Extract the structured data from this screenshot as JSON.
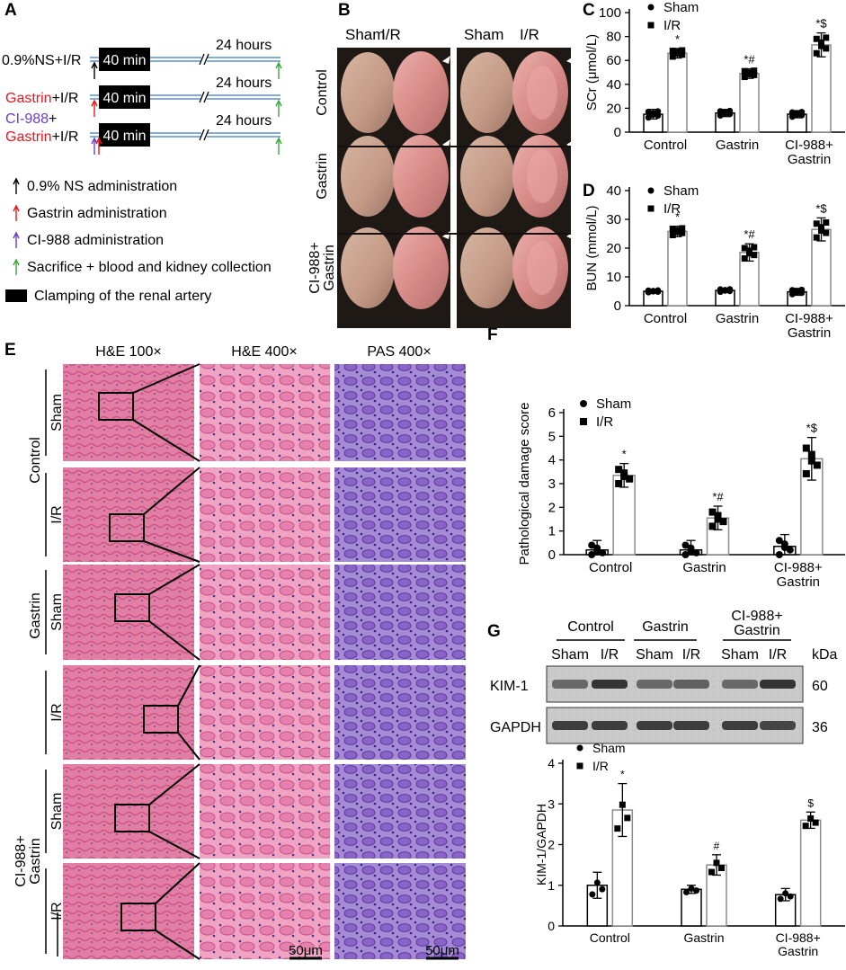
{
  "panels": {
    "A": "A",
    "B": "B",
    "C": "C",
    "D": "D",
    "E": "E",
    "F": "F",
    "G": "G"
  },
  "panel_a": {
    "rows": [
      {
        "label_parts": [
          {
            "text": "0.9%NS+I/R",
            "color": "#000000"
          }
        ],
        "box": "40 min",
        "duration": "24 hours"
      },
      {
        "label_parts": [
          {
            "text": "Gastrin",
            "color": "#e8141b"
          },
          {
            "text": "+I/R",
            "color": "#000000"
          }
        ],
        "box": "40 min",
        "duration": "24 hours"
      },
      {
        "label_parts": [
          {
            "text": "CI-988",
            "color": "#6a3cc9"
          },
          {
            "text": "+",
            "color": "#000000"
          }
        ],
        "label_parts2": [
          {
            "text": "Gastrin",
            "color": "#e8141b"
          },
          {
            "text": "+I/R",
            "color": "#000000"
          }
        ],
        "box": "40 min",
        "duration": "24 hours"
      }
    ],
    "legend": [
      {
        "text": "0.9% NS administration",
        "arrow_color": "#000000"
      },
      {
        "text": "Gastrin administration",
        "arrow_color": "#e8141b"
      },
      {
        "text": "CI-988 administration",
        "arrow_color": "#6a3cc9"
      },
      {
        "text": "Sacrifice + blood and kidney collection",
        "arrow_color": "#3aa83a"
      },
      {
        "text": "Clamping of the renal artery",
        "swatch": "#000000"
      }
    ]
  },
  "panel_b": {
    "col_headers": [
      "Sham",
      "I/R",
      "Sham",
      "I/R"
    ],
    "row_labels": [
      "Control",
      "Gastrin",
      "CI-988+",
      "Gastrin"
    ]
  },
  "panel_e": {
    "col_headers": [
      "H&E 100×",
      "H&E 400×",
      "PAS 400×"
    ],
    "groups": [
      "Control",
      "Gastrin",
      "CI-988+",
      "Gastrin"
    ],
    "row_labels": [
      "Sham",
      "I/R",
      "Sham",
      "I/R",
      "Sham",
      "I/R"
    ],
    "scale_bars": [
      "50μm",
      "50μm"
    ]
  },
  "panel_g_blot": {
    "groups": [
      "Control",
      "Gastrin",
      "CI-988+",
      "Gastrin"
    ],
    "lanes": [
      "Sham",
      "I/R",
      "Sham",
      "I/R",
      "Sham",
      "I/R"
    ],
    "unit": "kDa",
    "bands": [
      {
        "name": "KIM-1",
        "size": "60"
      },
      {
        "name": "GAPDH",
        "size": "36"
      }
    ]
  },
  "legend": {
    "sham": "Sham",
    "ir": "I/R"
  },
  "chart_data": [
    {
      "id": "C",
      "type": "bar",
      "ylabel": "SCr (μmol/L)",
      "ylim": [
        0,
        100
      ],
      "yticks": [
        0,
        20,
        40,
        60,
        80,
        100
      ],
      "categories": [
        "Control",
        "Gastrin",
        "CI-988+|Gastrin"
      ],
      "series": [
        {
          "name": "Sham",
          "values": [
            15,
            16,
            15
          ],
          "sd": [
            4,
            3,
            3
          ]
        },
        {
          "name": "I/R",
          "values": [
            66,
            49,
            73
          ],
          "sd": [
            4,
            4,
            10
          ]
        }
      ],
      "annotations": [
        "*",
        "*#",
        "*$"
      ]
    },
    {
      "id": "D",
      "type": "bar",
      "ylabel": "BUN (mmol/L)",
      "ylim": [
        0,
        40
      ],
      "yticks": [
        0,
        10,
        20,
        30,
        40
      ],
      "categories": [
        "Control",
        "Gastrin",
        "CI-988+|Gastrin"
      ],
      "series": [
        {
          "name": "Sham",
          "values": [
            5,
            5.3,
            4.8
          ],
          "sd": [
            0.5,
            0.7,
            1.2
          ]
        },
        {
          "name": "I/R",
          "values": [
            25.8,
            18.5,
            26.5
          ],
          "sd": [
            1.8,
            3,
            4
          ]
        }
      ],
      "annotations": [
        "*",
        "*#",
        "*$"
      ]
    },
    {
      "id": "F",
      "type": "bar",
      "ylabel": "Pathological damage score",
      "ylim": [
        0,
        6
      ],
      "yticks": [
        0,
        1,
        2,
        3,
        4,
        5,
        6
      ],
      "categories": [
        "Control",
        "Gastrin",
        "CI-988+|Gastrin"
      ],
      "series": [
        {
          "name": "Sham",
          "values": [
            0.2,
            0.2,
            0.35
          ],
          "sd": [
            0.4,
            0.4,
            0.5
          ]
        },
        {
          "name": "I/R",
          "values": [
            3.35,
            1.55,
            4.05
          ],
          "sd": [
            0.5,
            0.5,
            0.9
          ]
        }
      ],
      "annotations": [
        "*",
        "*#",
        "*$"
      ]
    },
    {
      "id": "G",
      "type": "bar",
      "ylabel": "KIM-1/GAPDH",
      "ylim": [
        0,
        4
      ],
      "yticks": [
        0,
        1,
        2,
        3,
        4
      ],
      "categories": [
        "Control",
        "Gastrin",
        "CI-988+|Gastrin"
      ],
      "series": [
        {
          "name": "Sham",
          "values": [
            1.0,
            0.9,
            0.77
          ],
          "sd": [
            0.32,
            0.1,
            0.15
          ]
        },
        {
          "name": "I/R",
          "values": [
            2.85,
            1.5,
            2.6
          ],
          "sd": [
            0.65,
            0.25,
            0.2
          ]
        }
      ],
      "annotations": [
        "*",
        "#",
        "$"
      ]
    }
  ]
}
